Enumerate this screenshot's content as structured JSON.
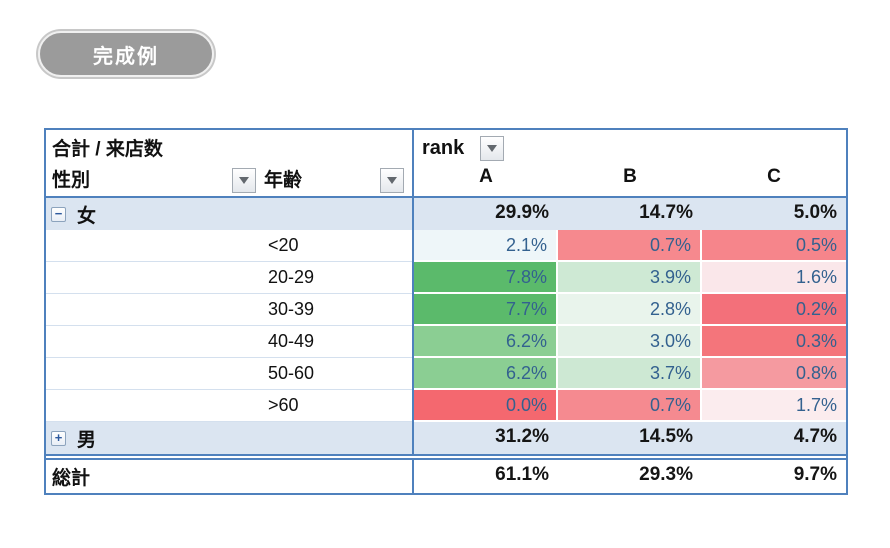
{
  "badge": {
    "label": "完成例"
  },
  "pivot": {
    "measure_title": "合計 / 来店数",
    "row_fields": {
      "field1": "性別",
      "field2": "年齢"
    },
    "column_field": "rank",
    "columns": [
      "A",
      "B",
      "C"
    ],
    "styling": {
      "border_blue": "#4f81bd",
      "subtotal_bg": "#dbe5f1",
      "value_text_blue": "#33618f",
      "scale_green_strong": "#5bba6b",
      "scale_red_strong": "#f4686f"
    },
    "rows": [
      {
        "type": "subtotal",
        "label": "女",
        "expand": "minus",
        "values": [
          "29.9%",
          "14.7%",
          "5.0%"
        ]
      },
      {
        "type": "detail",
        "label": "<20",
        "values": [
          "2.1%",
          "0.7%",
          "0.5%"
        ],
        "bg": [
          "#eef6f9",
          "#f6898e",
          "#f6858b"
        ]
      },
      {
        "type": "detail",
        "label": "20-29",
        "values": [
          "7.8%",
          "3.9%",
          "1.6%"
        ],
        "bg": [
          "#5bba6b",
          "#cee9d4",
          "#fae7ea"
        ]
      },
      {
        "type": "detail",
        "label": "30-39",
        "values": [
          "7.7%",
          "2.8%",
          "0.2%"
        ],
        "bg": [
          "#5bba6b",
          "#e9f4ec",
          "#f3707a"
        ]
      },
      {
        "type": "detail",
        "label": "40-49",
        "values": [
          "6.2%",
          "3.0%",
          "0.3%"
        ],
        "bg": [
          "#8bce93",
          "#e2f1e6",
          "#f4757b"
        ]
      },
      {
        "type": "detail",
        "label": "50-60",
        "values": [
          "6.2%",
          "3.7%",
          "0.8%"
        ],
        "bg": [
          "#8bce93",
          "#cde8d3",
          "#f59aa0"
        ]
      },
      {
        "type": "detail",
        "label": ">60",
        "values": [
          "0.0%",
          "0.7%",
          "1.7%"
        ],
        "bg": [
          "#f4686f",
          "#f58a90",
          "#fbecee"
        ]
      },
      {
        "type": "subtotal",
        "label": "男",
        "expand": "plus",
        "values": [
          "31.2%",
          "14.5%",
          "4.7%"
        ]
      },
      {
        "type": "grand",
        "label": "総計",
        "values": [
          "61.1%",
          "29.3%",
          "9.7%"
        ]
      }
    ]
  }
}
